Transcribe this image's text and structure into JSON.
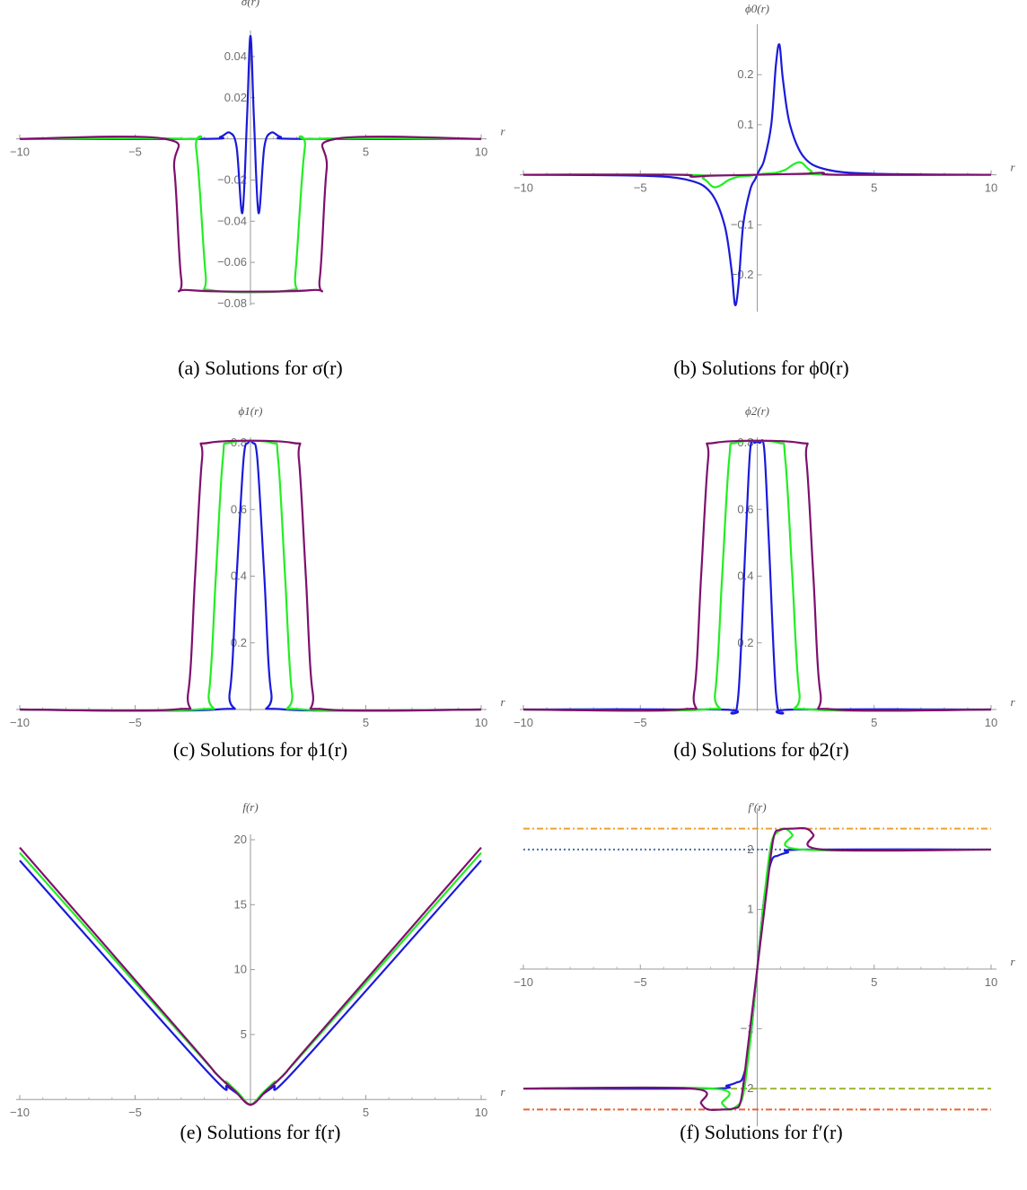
{
  "chart_data": [
    {
      "type": "line",
      "ylabel": "σ(r)",
      "xlabel": "r",
      "caption": "(a) Solutions for σ(r)",
      "xlim": [
        -10,
        10
      ],
      "ylim": [
        -0.08,
        0.05
      ],
      "x_ticks": [
        "−10",
        "−5",
        "5",
        "10"
      ],
      "y_ticks": [
        "0.04",
        "0.02",
        "−0.02",
        "−0.04",
        "−0.06",
        "−0.08"
      ],
      "series": [
        {
          "color": "#1a1adb",
          "x": [
            -10,
            -2,
            -1.3,
            -0.9,
            -0.6,
            -0.35,
            -0.15,
            0,
            0.15,
            0.35,
            0.6,
            0.9,
            1.3,
            2,
            10
          ],
          "y": [
            0,
            0,
            0.001,
            0.003,
            -0.004,
            -0.036,
            0.01,
            0.05,
            0.01,
            -0.036,
            -0.004,
            0.003,
            0.001,
            0,
            0
          ]
        },
        {
          "color": "#22ee22",
          "x": [
            -10,
            -2.8,
            -2.35,
            -1.95,
            -1.7,
            1.7,
            1.95,
            2.35,
            2.8,
            10
          ],
          "y": [
            0,
            0,
            -0.005,
            -0.065,
            -0.0735,
            -0.0735,
            -0.065,
            -0.005,
            0,
            0
          ]
        },
        {
          "color": "#7f0f6e",
          "x": [
            -10,
            -3.7,
            -3.3,
            -3.0,
            -2.6,
            2.6,
            3.0,
            3.3,
            3.7,
            10
          ],
          "y": [
            0,
            0,
            -0.015,
            -0.068,
            -0.0735,
            -0.0735,
            -0.068,
            -0.015,
            0,
            0
          ]
        }
      ]
    },
    {
      "type": "line",
      "ylabel": "ϕ0(r)",
      "xlabel": "r",
      "caption": "(b) Solutions for ϕ0(r)",
      "xlim": [
        -10,
        10
      ],
      "ylim": [
        -0.27,
        0.29
      ],
      "x_ticks": [
        "−10",
        "−5",
        "5",
        "10"
      ],
      "y_ticks": [
        "0.2",
        "0.1",
        "−0.1",
        "−0.2"
      ],
      "series": [
        {
          "color": "#1a1adb",
          "x": [
            -10,
            -5,
            -3,
            -2,
            -1.4,
            -1.1,
            -0.95,
            -0.8,
            -0.6,
            -0.3,
            -0.1,
            0,
            0.1,
            0.3,
            0.6,
            0.8,
            0.95,
            1.1,
            1.4,
            2,
            3,
            5,
            10
          ],
          "y": [
            0,
            -0.002,
            -0.01,
            -0.035,
            -0.1,
            -0.19,
            -0.26,
            -0.22,
            -0.1,
            -0.03,
            -0.01,
            0,
            0.01,
            0.03,
            0.1,
            0.22,
            0.26,
            0.19,
            0.1,
            0.035,
            0.01,
            0.002,
            0
          ]
        },
        {
          "color": "#22ee22",
          "x": [
            -10,
            -3,
            -2.3,
            -1.9,
            -1.6,
            -1.2,
            -0.8,
            -0.3,
            0,
            0.3,
            0.8,
            1.2,
            1.6,
            1.9,
            2.3,
            3,
            10
          ],
          "y": [
            0,
            0,
            -0.008,
            -0.024,
            -0.022,
            -0.01,
            -0.004,
            -0.002,
            0,
            0.002,
            0.004,
            0.01,
            0.022,
            0.024,
            0.008,
            0,
            0
          ]
        },
        {
          "color": "#7f0f6e",
          "x": [
            -10,
            -3.5,
            -2.8,
            -2,
            0,
            2,
            2.8,
            3.5,
            10
          ],
          "y": [
            0,
            0,
            -0.004,
            -0.002,
            0,
            0.002,
            0.004,
            0,
            0
          ]
        }
      ]
    },
    {
      "type": "line",
      "ylabel": "ϕ1(r)",
      "xlabel": "r",
      "caption": "(c) Solutions for ϕ1(r)",
      "xlim": [
        -10,
        10
      ],
      "ylim": [
        0,
        0.8
      ],
      "x_ticks": [
        "−10",
        "−5",
        "5",
        "10"
      ],
      "y_ticks": [
        "0.8",
        "0.6",
        "0.4",
        "0.2"
      ],
      "series": [
        {
          "color": "#1a1adb",
          "x": [
            -10,
            -1.5,
            -0.9,
            -0.6,
            -0.3,
            -0.1,
            0.1,
            0.3,
            0.6,
            0.9,
            1.5,
            10
          ],
          "y": [
            0,
            0,
            0.05,
            0.4,
            0.75,
            0.8,
            0.8,
            0.75,
            0.4,
            0.05,
            0,
            0
          ]
        },
        {
          "color": "#22ee22",
          "x": [
            -10,
            -2.3,
            -1.8,
            -1.5,
            -1.2,
            -0.9,
            0.9,
            1.2,
            1.5,
            1.8,
            2.3,
            10
          ],
          "y": [
            0,
            0,
            0.05,
            0.4,
            0.75,
            0.8,
            0.8,
            0.75,
            0.4,
            0.05,
            0,
            0
          ]
        },
        {
          "color": "#7f0f6e",
          "x": [
            -10,
            -3.3,
            -2.7,
            -2.4,
            -2.1,
            -1.8,
            1.8,
            2.1,
            2.4,
            2.7,
            3.3,
            10
          ],
          "y": [
            0,
            0,
            0.05,
            0.4,
            0.75,
            0.8,
            0.8,
            0.75,
            0.4,
            0.05,
            0,
            0
          ]
        }
      ]
    },
    {
      "type": "line",
      "ylabel": "ϕ2(r)",
      "xlabel": "r",
      "caption": "(d) Solutions for ϕ2(r)",
      "xlim": [
        -10,
        10
      ],
      "ylim": [
        0,
        0.8
      ],
      "x_ticks": [
        "−10",
        "−5",
        "5",
        "10"
      ],
      "y_ticks": [
        "0.8",
        "0.6",
        "0.4",
        "0.2"
      ],
      "series": [
        {
          "color": "#1a1adb",
          "x": [
            -10,
            -1.6,
            -1.1,
            -0.8,
            -0.5,
            -0.3,
            -0.1,
            0.1,
            0.3,
            0.5,
            0.8,
            1.1,
            1.6,
            10
          ],
          "y": [
            0,
            0,
            -0.01,
            0.05,
            0.5,
            0.78,
            0.8,
            0.8,
            0.78,
            0.5,
            0.05,
            -0.01,
            0,
            0
          ]
        },
        {
          "color": "#22ee22",
          "x": [
            -10,
            -2.3,
            -1.8,
            -1.5,
            -1.2,
            -0.9,
            0.9,
            1.2,
            1.5,
            1.8,
            2.3,
            10
          ],
          "y": [
            0,
            0,
            0.05,
            0.4,
            0.75,
            0.8,
            0.8,
            0.75,
            0.4,
            0.05,
            0,
            0
          ]
        },
        {
          "color": "#7f0f6e",
          "x": [
            -10,
            -3.3,
            -2.7,
            -2.4,
            -2.1,
            -1.8,
            1.8,
            2.1,
            2.4,
            2.7,
            3.3,
            10
          ],
          "y": [
            0,
            0,
            0.05,
            0.4,
            0.75,
            0.8,
            0.8,
            0.75,
            0.4,
            0.05,
            0,
            0
          ]
        }
      ]
    },
    {
      "type": "line",
      "ylabel": "f(r)",
      "xlabel": "r",
      "caption": "(e) Solutions for f(r)",
      "xlim": [
        -10,
        10
      ],
      "ylim": [
        -0.4,
        20
      ],
      "x_ticks": [
        "−10",
        "−5",
        "5",
        "10"
      ],
      "y_ticks": [
        "20",
        "15",
        "10",
        "5"
      ],
      "series": [
        {
          "color": "#1a1adb",
          "x": [
            -10,
            -2,
            -1,
            -0.5,
            0,
            0.5,
            1,
            2,
            10
          ],
          "y": [
            18.4,
            2.4,
            1.0,
            0.35,
            -0.4,
            0.35,
            1.0,
            2.4,
            18.4
          ]
        },
        {
          "color": "#22ee22",
          "x": [
            -10,
            -2,
            -1,
            -0.5,
            0,
            0.5,
            1,
            2,
            10
          ],
          "y": [
            19.0,
            3.0,
            1.3,
            0.45,
            -0.4,
            0.45,
            1.3,
            3.0,
            19.0
          ]
        },
        {
          "color": "#7f0f6e",
          "x": [
            -10,
            -2.5,
            -1.5,
            -0.7,
            0,
            0.7,
            1.5,
            2.5,
            10
          ],
          "y": [
            19.4,
            4.1,
            2.0,
            0.7,
            -0.4,
            0.7,
            2.0,
            4.1,
            19.4
          ]
        }
      ]
    },
    {
      "type": "line",
      "ylabel": "f′(r)",
      "xlabel": "r",
      "caption": "(f) Solutions for f′(r)",
      "xlim": [
        -10,
        10
      ],
      "ylim": [
        -2.6,
        2.6
      ],
      "x_ticks": [
        "−10",
        "−5",
        "5",
        "10"
      ],
      "y_ticks": [
        "2",
        "1",
        "−1",
        "−2"
      ],
      "reference_lines": [
        {
          "y": 2.35,
          "color": "#f0a030",
          "dash": "dashdot"
        },
        {
          "y": 2.0,
          "color": "#4a6fa8",
          "dash": "dot"
        },
        {
          "y": -2.0,
          "color": "#9cb835",
          "dash": "dash"
        },
        {
          "y": -2.35,
          "color": "#e8643a",
          "dash": "dashdot"
        }
      ],
      "series": [
        {
          "color": "#1a1adb",
          "x": [
            -10,
            -2,
            -1.3,
            -0.9,
            -0.6,
            -0.3,
            0,
            0.3,
            0.6,
            0.9,
            1.3,
            2,
            10
          ],
          "y": [
            -2,
            -2,
            -1.95,
            -1.9,
            -1.8,
            -1.2,
            0,
            1.2,
            1.8,
            1.9,
            1.95,
            2,
            2
          ]
        },
        {
          "color": "#22ee22",
          "x": [
            -10,
            -1.9,
            -1.5,
            -1.2,
            -0.9,
            -0.6,
            -0.3,
            0,
            0.3,
            0.6,
            0.9,
            1.2,
            1.5,
            1.9,
            10
          ],
          "y": [
            -2,
            -2,
            -2.25,
            -2.35,
            -2.3,
            -2.1,
            -1.2,
            0,
            1.2,
            2.1,
            2.3,
            2.35,
            2.25,
            2,
            2
          ]
        },
        {
          "color": "#7f0f6e",
          "x": [
            -10,
            -2.8,
            -2.4,
            -2.1,
            -1.5,
            -1.0,
            -0.7,
            -0.4,
            0,
            0.4,
            0.7,
            1.0,
            1.5,
            2.1,
            2.4,
            2.8,
            10
          ],
          "y": [
            -2,
            -2,
            -2.25,
            -2.35,
            -2.35,
            -2.33,
            -2.2,
            -1.3,
            0,
            1.3,
            2.2,
            2.33,
            2.35,
            2.35,
            2.25,
            2,
            2
          ]
        }
      ]
    }
  ]
}
